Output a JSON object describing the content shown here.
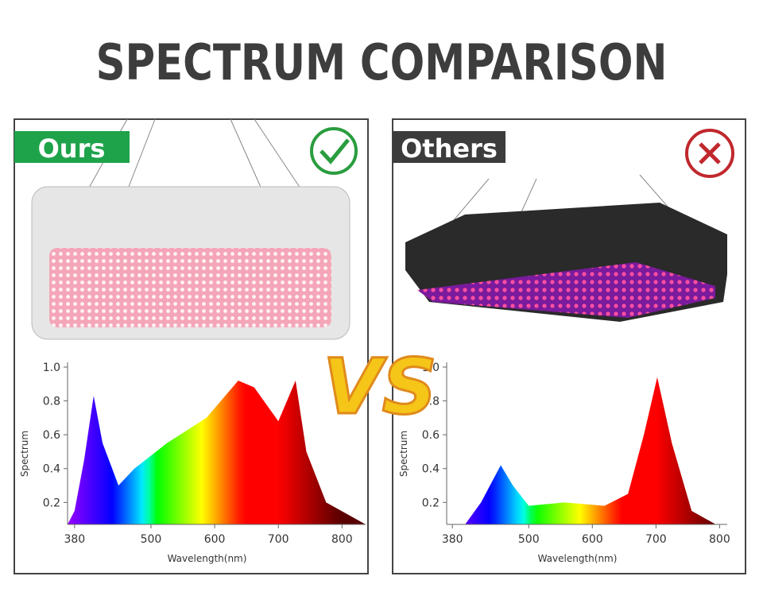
{
  "title": "SPECTRUM COMPARISON",
  "vs": "VS",
  "chart_data": [
    {
      "type": "area",
      "label": "Ours",
      "y_label": "Spectrum",
      "x_label": "Wavelength(nm)",
      "x": [
        369,
        380,
        395,
        410,
        424,
        449,
        474,
        525,
        587,
        637,
        662,
        700,
        727,
        744,
        775,
        837
      ],
      "values": [
        0.07,
        0.15,
        0.45,
        0.83,
        0.55,
        0.3,
        0.4,
        0.55,
        0.7,
        0.92,
        0.88,
        0.68,
        0.92,
        0.5,
        0.2,
        0.07
      ],
      "xlim": [
        369,
        837
      ],
      "xticks": [
        380,
        500,
        600,
        700,
        800
      ],
      "ylim": [
        0.07,
        1.0
      ],
      "yticks": [
        0.2,
        0.4,
        0.6,
        0.8,
        {
          "value": 1,
          "label": "1.0"
        }
      ]
    },
    {
      "type": "area",
      "label": "Others",
      "y_label": "Spectrum",
      "x_label": "Wavelength(nm)",
      "x": [
        400,
        425,
        456,
        475,
        500,
        556,
        619,
        656,
        681,
        702,
        725,
        756,
        794
      ],
      "values": [
        0.07,
        0.2,
        0.42,
        0.3,
        0.18,
        0.2,
        0.18,
        0.25,
        0.6,
        0.94,
        0.55,
        0.15,
        0.07
      ],
      "xlim": [
        371,
        812
      ],
      "xticks": [
        380,
        500,
        600,
        700,
        800
      ],
      "ylim": [
        0.07,
        1.0
      ],
      "yticks": [
        0.2,
        0.4,
        0.6,
        0.8,
        {
          "value": 1,
          "label": "1.0"
        }
      ]
    }
  ]
}
